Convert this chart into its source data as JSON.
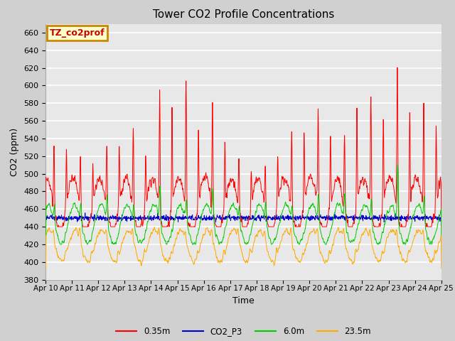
{
  "title": "Tower CO2 Profile Concentrations",
  "xlabel": "Time",
  "ylabel": "CO2 (ppm)",
  "ylim": [
    380,
    670
  ],
  "yticks": [
    380,
    400,
    420,
    440,
    460,
    480,
    500,
    520,
    540,
    560,
    580,
    600,
    620,
    640,
    660
  ],
  "date_labels": [
    "Apr 10",
    "Apr 11",
    "Apr 12",
    "Apr 13",
    "Apr 14",
    "Apr 15",
    "Apr 16",
    "Apr 17",
    "Apr 18",
    "Apr 19",
    "Apr 20",
    "Apr 21",
    "Apr 22",
    "Apr 23",
    "Apr 24",
    "Apr 25"
  ],
  "legend_entries": [
    "0.35m",
    "CO2_P3",
    "6.0m",
    "23.5m"
  ],
  "legend_colors": [
    "#ff0000",
    "#0000cc",
    "#00cc00",
    "#ffaa00"
  ],
  "annotation_text": "TZ_co2prof",
  "annotation_bg": "#ffffcc",
  "annotation_border": "#cc8800",
  "plot_bg": "#e8e8e8",
  "grid_color": "#ffffff",
  "title_fontsize": 11
}
